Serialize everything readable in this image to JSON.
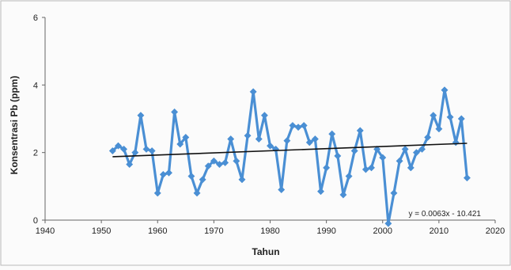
{
  "chart_data": {
    "type": "line",
    "title": "",
    "xlabel": "Tahun",
    "ylabel": "Konsentrasi Pb (ppm)",
    "xlim": [
      1940,
      2020
    ],
    "ylim": [
      0,
      6
    ],
    "xticks": [
      1940,
      1950,
      1960,
      1970,
      1980,
      1990,
      2000,
      2010,
      2020
    ],
    "yticks": [
      0,
      2,
      4,
      6
    ],
    "grid": false,
    "legend": "none",
    "series": [
      {
        "color": "#4a8fd4",
        "marker": "diamond",
        "x": [
          1952,
          1953,
          1954,
          1955,
          1956,
          1957,
          1958,
          1959,
          1960,
          1961,
          1962,
          1963,
          1964,
          1965,
          1966,
          1967,
          1968,
          1969,
          1970,
          1971,
          1972,
          1973,
          1974,
          1975,
          1976,
          1977,
          1978,
          1979,
          1980,
          1981,
          1982,
          1983,
          1984,
          1985,
          1986,
          1987,
          1988,
          1989,
          1990,
          1991,
          1992,
          1993,
          1994,
          1995,
          1996,
          1997,
          1998,
          1999,
          2000,
          2001,
          2002,
          2003,
          2004,
          2005,
          2006,
          2007,
          2008,
          2009,
          2010,
          2011,
          2012,
          2013,
          2014,
          2015
        ],
        "y": [
          2.05,
          2.2,
          2.1,
          1.65,
          2.0,
          3.1,
          2.1,
          2.05,
          0.8,
          1.35,
          1.4,
          3.2,
          2.25,
          2.45,
          1.3,
          0.8,
          1.2,
          1.6,
          1.75,
          1.65,
          1.7,
          2.4,
          1.75,
          1.2,
          2.5,
          3.8,
          2.4,
          3.1,
          2.2,
          2.1,
          0.9,
          2.35,
          2.8,
          2.75,
          2.8,
          2.3,
          2.4,
          0.85,
          1.55,
          2.55,
          1.9,
          0.75,
          1.3,
          2.05,
          2.65,
          1.5,
          1.55,
          2.1,
          1.85,
          -0.1,
          0.8,
          1.75,
          2.1,
          1.55,
          2.0,
          2.1,
          2.45,
          3.1,
          2.7,
          3.85,
          3.05,
          2.3,
          3.0,
          1.25
        ]
      }
    ],
    "trendline": {
      "color": "#111111",
      "equation": "y = 0.0063x - 10.421",
      "slope": 0.0063,
      "intercept": -10.421,
      "x_range": [
        1952,
        2015
      ]
    }
  }
}
